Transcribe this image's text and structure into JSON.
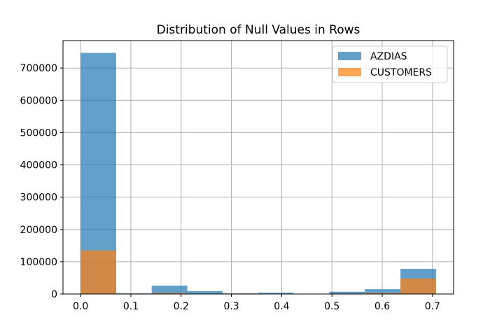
{
  "chart_data": {
    "type": "bar",
    "title": "Distribution of Null Values in Rows",
    "xlabel": "",
    "ylabel": "",
    "xlim": [
      -0.035,
      0.742
    ],
    "ylim": [
      0,
      785000
    ],
    "grid": true,
    "legend_position": "top-right",
    "x_ticks": [
      0.0,
      0.1,
      0.2,
      0.3,
      0.4,
      0.5,
      0.6,
      0.7
    ],
    "x_tick_labels": [
      "0.0",
      "0.1",
      "0.2",
      "0.3",
      "0.4",
      "0.5",
      "0.6",
      "0.7"
    ],
    "y_ticks": [
      0,
      100000,
      200000,
      300000,
      400000,
      500000,
      600000,
      700000
    ],
    "y_tick_labels": [
      "0",
      "100000",
      "200000",
      "300000",
      "400000",
      "500000",
      "600000",
      "700000"
    ],
    "series": [
      {
        "name": "AZDIAS",
        "color": "#1f77b4",
        "opacity": 0.7,
        "bins": [
          {
            "x0": 0.0,
            "x1": 0.0707,
            "value": 747000
          },
          {
            "x0": 0.0707,
            "x1": 0.1414,
            "value": 2000
          },
          {
            "x0": 0.1414,
            "x1": 0.2121,
            "value": 26000
          },
          {
            "x0": 0.2121,
            "x1": 0.2828,
            "value": 9000
          },
          {
            "x0": 0.2828,
            "x1": 0.3535,
            "value": 2000
          },
          {
            "x0": 0.3535,
            "x1": 0.4242,
            "value": 4000
          },
          {
            "x0": 0.4242,
            "x1": 0.4949,
            "value": 1000
          },
          {
            "x0": 0.4949,
            "x1": 0.5656,
            "value": 7000
          },
          {
            "x0": 0.5656,
            "x1": 0.6363,
            "value": 15000
          },
          {
            "x0": 0.6363,
            "x1": 0.707,
            "value": 78000
          }
        ]
      },
      {
        "name": "CUSTOMERS",
        "color": "#ff7f0e",
        "opacity": 0.7,
        "bins": [
          {
            "x0": 0.0,
            "x1": 0.0707,
            "value": 135000
          },
          {
            "x0": 0.0707,
            "x1": 0.1414,
            "value": 1000
          },
          {
            "x0": 0.1414,
            "x1": 0.2121,
            "value": 3000
          },
          {
            "x0": 0.2121,
            "x1": 0.2828,
            "value": 1000
          },
          {
            "x0": 0.2828,
            "x1": 0.3535,
            "value": 500
          },
          {
            "x0": 0.3535,
            "x1": 0.4242,
            "value": 500
          },
          {
            "x0": 0.4242,
            "x1": 0.4949,
            "value": 300
          },
          {
            "x0": 0.4949,
            "x1": 0.5656,
            "value": 1500
          },
          {
            "x0": 0.5656,
            "x1": 0.6363,
            "value": 3000
          },
          {
            "x0": 0.6363,
            "x1": 0.707,
            "value": 48000
          }
        ]
      }
    ]
  }
}
